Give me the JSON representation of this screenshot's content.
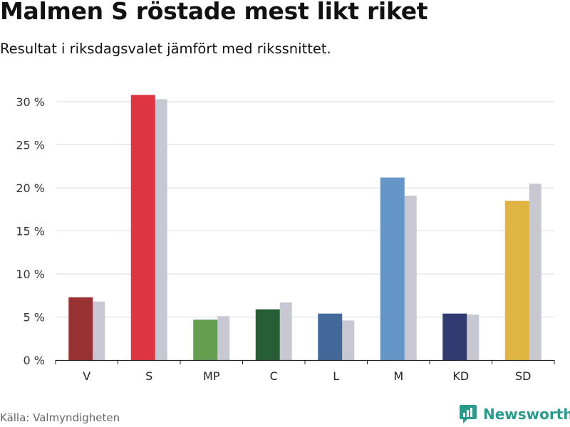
{
  "title": "Malmen S röstade mest likt riket",
  "subtitle": "Resultat i riksdagsvalet jämfört med rikssnittet.",
  "source": "Källa: Valmyndigheten",
  "brand": {
    "name": "Newsworthy",
    "icon": "newsworthy-logo-icon",
    "color": "#2a9a8c"
  },
  "chart_data": {
    "type": "bar",
    "title": "Malmen S röstade mest likt riket",
    "subtitle": "Resultat i riksdagsvalet jämfört med rikssnittet.",
    "categories": [
      "V",
      "S",
      "MP",
      "C",
      "L",
      "M",
      "KD",
      "SD"
    ],
    "series": [
      {
        "values": [
          7.3,
          30.8,
          4.7,
          5.9,
          5.4,
          21.2,
          5.4,
          18.5
        ],
        "colors": [
          "#993333",
          "#dd3640",
          "#649f50",
          "#285e36",
          "#43699a",
          "#6497c7",
          "#303b72",
          "#e0b443"
        ]
      },
      {
        "values": [
          6.8,
          30.3,
          5.1,
          6.7,
          4.6,
          19.1,
          5.3,
          20.5
        ],
        "color": "#c8c8d2"
      }
    ],
    "yticks": [
      "0 %",
      "5 %",
      "10 %",
      "15 %",
      "20 %",
      "25 %",
      "30 %"
    ],
    "ylim": [
      0,
      30
    ],
    "grid": true,
    "legend": "none"
  }
}
